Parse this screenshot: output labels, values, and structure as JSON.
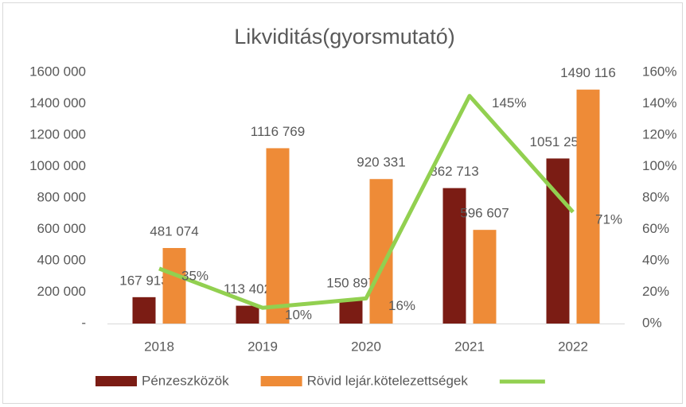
{
  "chart_data": {
    "type": "bar_line",
    "title": "Likviditás(gyorsmutató)",
    "categories": [
      "2018",
      "2019",
      "2020",
      "2021",
      "2022"
    ],
    "series": [
      {
        "name": "Pénzeszközök",
        "color": "#7b1c14",
        "type": "bar",
        "values": [
          167913,
          113402,
          150897,
          862713,
          1051254
        ],
        "value_labels": [
          "167 913",
          "113 402",
          "150 897",
          "862 713",
          "1051 254"
        ]
      },
      {
        "name": "Rövid lejár.kötelezettségek",
        "color": "#ee8b37",
        "type": "bar",
        "values": [
          481074,
          1116769,
          920331,
          596607,
          1490116
        ],
        "value_labels": [
          "481 074",
          "1116 769",
          "920 331",
          "596 607",
          "1490 116"
        ]
      },
      {
        "color": "#92d050",
        "type": "line",
        "axis": "y2",
        "values": [
          35,
          10,
          16,
          145,
          71
        ],
        "value_labels": [
          "35%",
          "10%",
          "16%",
          "145%",
          "71%"
        ]
      }
    ],
    "ylim": [
      0,
      1600000
    ],
    "yticks": [
      {
        "value": 0,
        "label": "-"
      },
      {
        "value": 200000,
        "label": "200 000"
      },
      {
        "value": 400000,
        "label": "400 000"
      },
      {
        "value": 600000,
        "label": "600 000"
      },
      {
        "value": 800000,
        "label": "800 000"
      },
      {
        "value": 1000000,
        "label": "1000 000"
      },
      {
        "value": 1200000,
        "label": "1200 000"
      },
      {
        "value": 1400000,
        "label": "1400 000"
      },
      {
        "value": 1600000,
        "label": "1600 000"
      }
    ],
    "y2lim": [
      0,
      160
    ],
    "y2ticks": [
      {
        "value": 0,
        "label": "0%"
      },
      {
        "value": 20,
        "label": "20%"
      },
      {
        "value": 40,
        "label": "40%"
      },
      {
        "value": 60,
        "label": "60%"
      },
      {
        "value": 80,
        "label": "80%"
      },
      {
        "value": 100,
        "label": "100%"
      },
      {
        "value": 120,
        "label": "120%"
      },
      {
        "value": 140,
        "label": "140%"
      },
      {
        "value": 160,
        "label": "160%"
      }
    ],
    "grid": false,
    "legend": "bottom"
  }
}
